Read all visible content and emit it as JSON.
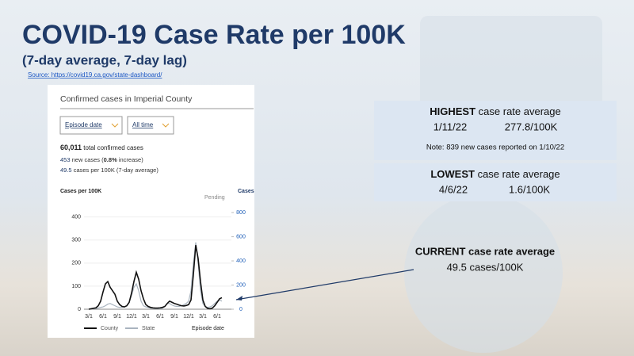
{
  "title": "COVID-19 Case Rate per 100K",
  "subtitle": "(7-day average, 7-day lag)",
  "source": "Source: https://covid19.ca.gov/state-dashboard/",
  "panel": {
    "heading": "Confirmed cases in Imperial County",
    "filters": [
      "Episode date",
      "All time"
    ],
    "total": "60,011",
    "total_label": "total confirmed cases",
    "new": "453",
    "new_label_a": "new cases (",
    "pct": "0.8%",
    "new_label_b": "increase)",
    "rate": "49.5",
    "rate_label": "cases per 100K (7-day average)"
  },
  "chart_data": {
    "type": "line",
    "y_label": "Cases per 100K",
    "y2_label": "Cases",
    "annotation": "Pending",
    "x_label": "Episode date",
    "categories": [
      "3/1",
      null,
      null,
      null,
      null,
      null,
      "6/1",
      null,
      null,
      null,
      null,
      null,
      "9/1",
      null,
      null,
      null,
      null,
      null,
      "12/1",
      null,
      null,
      null,
      null,
      null,
      "3/1",
      null,
      null,
      null,
      null,
      null,
      "6/1",
      null,
      null,
      null,
      null,
      null,
      "9/1",
      null,
      null,
      null,
      null,
      null,
      "12/1",
      null,
      null,
      null,
      null,
      null,
      "3/1",
      null,
      null,
      null,
      null,
      null,
      "6/1",
      null,
      null
    ],
    "series": [
      {
        "name": "County",
        "color": "#111111",
        "values": [
          0,
          2,
          4,
          6,
          15,
          35,
          75,
          110,
          120,
          95,
          80,
          65,
          35,
          20,
          12,
          10,
          15,
          30,
          70,
          120,
          160,
          130,
          80,
          45,
          20,
          12,
          8,
          6,
          5,
          5,
          6,
          8,
          12,
          25,
          35,
          30,
          25,
          22,
          18,
          15,
          14,
          16,
          20,
          40,
          150,
          278,
          220,
          120,
          40,
          12,
          4,
          2,
          5,
          15,
          30,
          45,
          50
        ]
      },
      {
        "name": "State",
        "color": "#a9b4bf",
        "values": [
          0,
          1,
          2,
          3,
          5,
          8,
          10,
          15,
          22,
          25,
          20,
          15,
          10,
          8,
          9,
          10,
          15,
          30,
          60,
          95,
          110,
          80,
          35,
          15,
          10,
          8,
          5,
          4,
          3,
          3,
          3,
          5,
          12,
          25,
          25,
          18,
          14,
          12,
          12,
          15,
          20,
          25,
          35,
          80,
          200,
          290,
          200,
          80,
          25,
          12,
          8,
          10,
          15,
          25,
          35,
          40,
          35
        ]
      }
    ],
    "ylim": [
      0,
      440
    ],
    "yticks": [
      0,
      100,
      200,
      300,
      400
    ],
    "y2lim": [
      0,
      840
    ],
    "y2ticks": [
      0,
      200,
      400,
      600,
      800
    ]
  },
  "highest": {
    "label": "HIGHEST",
    "text": "case rate average",
    "date": "1/11/22",
    "value": "277.8/100K",
    "note": "Note: 839 new cases reported on 1/10/22"
  },
  "lowest": {
    "label": "LOWEST",
    "text": "case rate average",
    "date": "4/6/22",
    "value": "1.6/100K"
  },
  "current": {
    "label": "CURRENT case rate average",
    "value": "49.5 cases/100K"
  }
}
